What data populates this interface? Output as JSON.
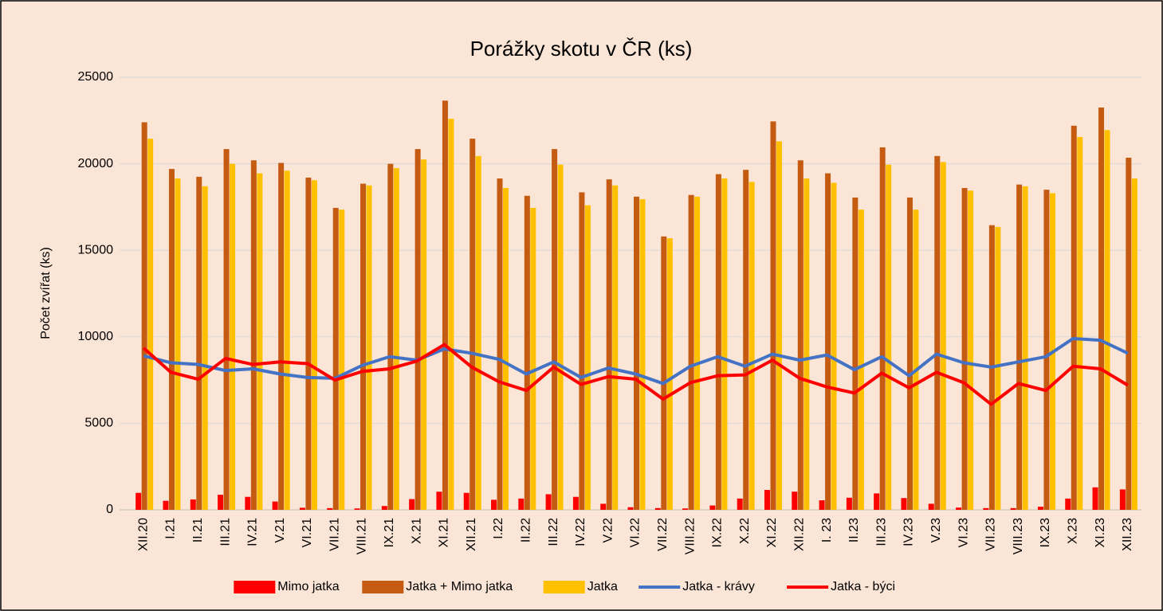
{
  "chart_data": {
    "type": "bar-line",
    "title": "Porážky skotu v ČR (ks)",
    "y_label": "Počet zvířat (ks)",
    "categories": [
      "XII.20",
      "I.21",
      "II.21",
      "III.21",
      "IV.21",
      "V.21",
      "VI.21",
      "VII.21",
      "VIII.21",
      "IX.21",
      "X.21",
      "XI.21",
      "XII.21",
      "I.22",
      "II.22",
      "III.22",
      "IV.22",
      "V.22",
      "VI.22",
      "VII.22",
      "VIII.22",
      "IX.22",
      "X.22",
      "XI.22",
      "XII.22",
      "I. 23",
      "II.23",
      "III.23",
      "IV.23",
      "V.23",
      "VI.23",
      "VII.23",
      "VIII.23",
      "IX.23",
      "X.23",
      "XI.23",
      "XII.23"
    ],
    "series": [
      {
        "name": "Mimo jatka",
        "kind": "bar",
        "color": "#ff0000",
        "values": [
          980,
          520,
          600,
          870,
          750,
          480,
          120,
          100,
          80,
          220,
          620,
          1050,
          980,
          580,
          650,
          900,
          750,
          350,
          150,
          100,
          80,
          250,
          650,
          1150,
          1050,
          550,
          700,
          950,
          680,
          350,
          130,
          100,
          100,
          180,
          650,
          1300,
          1180
        ]
      },
      {
        "name": "Jatka + Mimo jatka",
        "kind": "bar",
        "color": "#c55a11",
        "values": [
          22400,
          19700,
          19250,
          20850,
          20200,
          20050,
          19200,
          17450,
          18850,
          20000,
          20850,
          23650,
          21450,
          19150,
          18150,
          20850,
          18350,
          19100,
          18100,
          15800,
          18200,
          19400,
          19650,
          22450,
          20200,
          19450,
          18050,
          20950,
          18050,
          20450,
          18600,
          16450,
          18800,
          18500,
          22200,
          23250,
          20350
        ]
      },
      {
        "name": "Jatka",
        "kind": "bar",
        "color": "#ffc000",
        "values": [
          21450,
          19150,
          18700,
          20000,
          19450,
          19600,
          19050,
          17350,
          18750,
          19750,
          20250,
          22600,
          20450,
          18600,
          17450,
          19950,
          17600,
          18750,
          17950,
          15700,
          18100,
          19150,
          18950,
          21300,
          19150,
          18900,
          17350,
          19950,
          17350,
          20100,
          18450,
          16350,
          18700,
          18300,
          21550,
          21950,
          19150
        ]
      },
      {
        "name": "Jatka - krávy",
        "kind": "line",
        "color": "#4472c4",
        "values": [
          8900,
          8500,
          8400,
          8050,
          8150,
          7850,
          7650,
          7600,
          8350,
          8850,
          8650,
          9300,
          9050,
          8700,
          7850,
          8550,
          7650,
          8200,
          7850,
          7300,
          8300,
          8850,
          8300,
          9000,
          8650,
          8950,
          8100,
          8850,
          7750,
          9000,
          8500,
          8250,
          8550,
          8850,
          9900,
          9800,
          9050
        ]
      },
      {
        "name": "Jatka - býci",
        "kind": "line",
        "color": "#ff0000",
        "values": [
          9350,
          7950,
          7550,
          8750,
          8400,
          8550,
          8450,
          7500,
          8000,
          8150,
          8600,
          9550,
          8250,
          7400,
          6900,
          8250,
          7250,
          7700,
          7550,
          6400,
          7350,
          7750,
          7800,
          8650,
          7600,
          7100,
          6750,
          7900,
          7050,
          7950,
          7350,
          6100,
          7300,
          6900,
          8300,
          8150,
          7200
        ]
      }
    ],
    "ylim": [
      0,
      25000
    ],
    "yticks": [
      0,
      5000,
      10000,
      15000,
      20000,
      25000
    ],
    "grid": true,
    "legend": "bottom",
    "background": "#fbe5d6"
  }
}
